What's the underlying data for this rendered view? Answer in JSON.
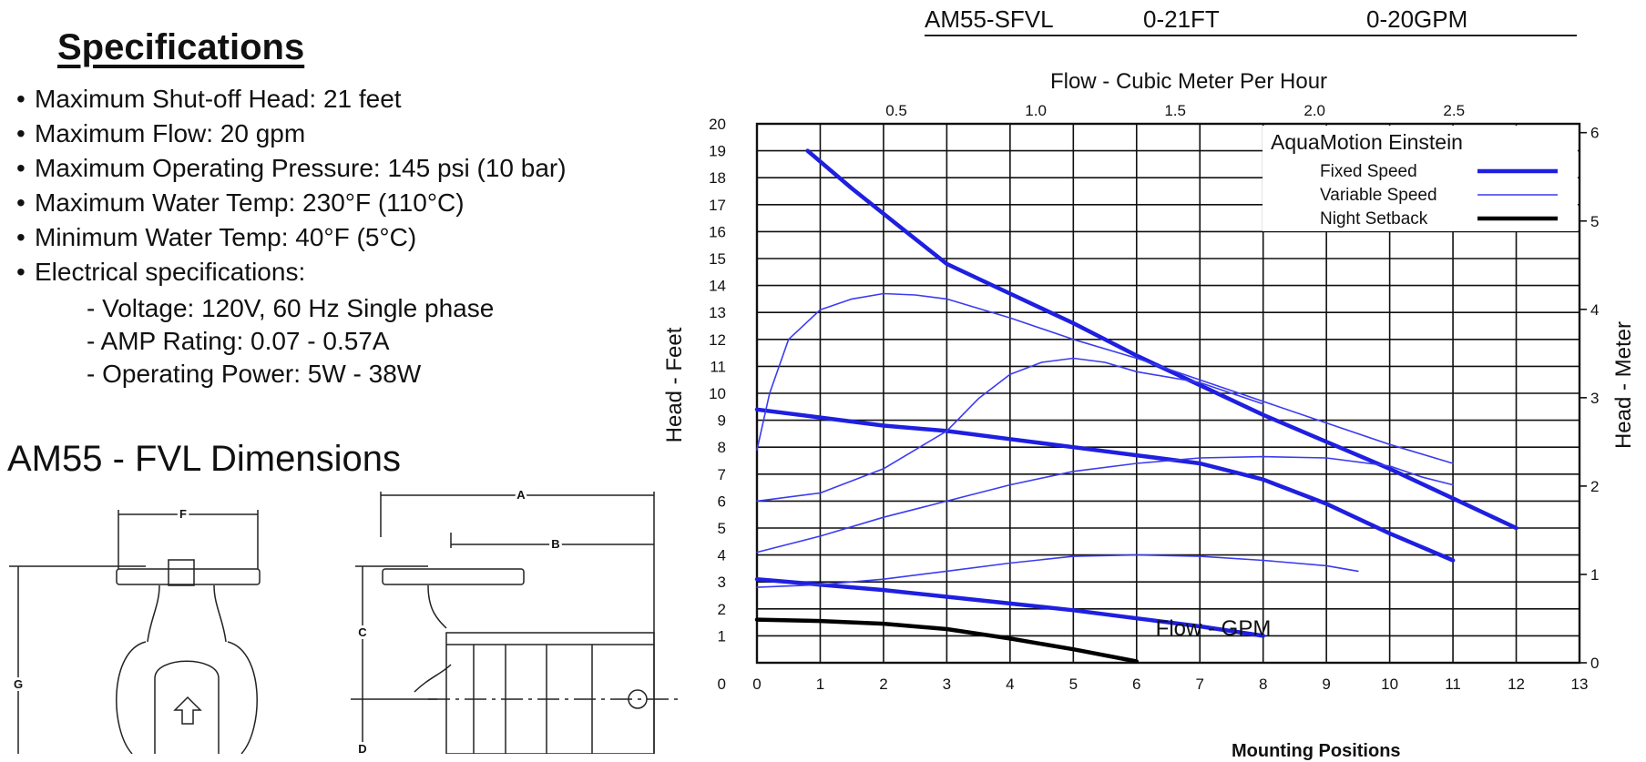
{
  "model_header": {
    "model": "AM55-SFVL",
    "head_range": "0-21FT",
    "flow_range": "0-20GPM"
  },
  "specifications": {
    "title": "Specifications",
    "items": [
      "Maximum Shut-off Head: 21 feet",
      "Maximum Flow: 20 gpm",
      "Maximum Operating Pressure: 145 psi (10 bar)",
      "Maximum Water Temp: 230°F (110°C)",
      "Minimum Water Temp: 40°F (5°C)",
      "Electrical specifications:"
    ],
    "electrical": [
      "- Voltage: 120V, 60 Hz Single phase",
      "- AMP Rating: 0.07 - 0.57A",
      "- Operating Power: 5W - 38W"
    ]
  },
  "dimensions": {
    "title": "AM55 - FVL Dimensions",
    "labels": {
      "a": "A",
      "b": "B",
      "c": "C",
      "d": "D",
      "f": "F",
      "g": "G"
    }
  },
  "mounting_label": "Mounting Positions",
  "chart_data": {
    "type": "line",
    "xlabel": "Flow - GPM",
    "ylabel": "Head - Feet",
    "x2label": "Flow - Cubic Meter Per Hour",
    "y2label": "Head - Meter",
    "xlim": [
      0,
      13
    ],
    "ylim": [
      0,
      20
    ],
    "x2lim": [
      0,
      2.95
    ],
    "y2lim": [
      0,
      6.1
    ],
    "x_ticks": [
      0,
      1,
      2,
      3,
      4,
      5,
      6,
      7,
      8,
      9,
      10,
      11,
      12,
      13
    ],
    "y_ticks": [
      1,
      2,
      3,
      4,
      5,
      6,
      7,
      8,
      9,
      10,
      11,
      12,
      13,
      14,
      15,
      16,
      17,
      18,
      19,
      20
    ],
    "x2_ticks": [
      0.5,
      1.0,
      1.5,
      2.0,
      2.5
    ],
    "x2_tick_labels": [
      "0.5",
      "1.0",
      "1.5",
      "2.0",
      "2.5"
    ],
    "y2_ticks": [
      0,
      1,
      2,
      3,
      4,
      5,
      6
    ],
    "grid": true,
    "legend": {
      "title": "AquaMotion Einstein",
      "placement": "top-right",
      "entries": [
        {
          "name": "Fixed Speed",
          "color": "#1f1fe0",
          "style": "thick"
        },
        {
          "name": "Variable Speed",
          "color": "#3b3bf0",
          "style": "thin"
        },
        {
          "name": "Night Setback",
          "color": "#000000",
          "style": "thick"
        }
      ]
    },
    "series": [
      {
        "name": "Fixed Speed",
        "color": "#1f1fe0",
        "style": "thick",
        "points": [
          [
            0.8,
            19
          ],
          [
            1.5,
            17.6
          ],
          [
            2.3,
            16.1
          ],
          [
            3,
            14.8
          ],
          [
            4,
            13.7
          ],
          [
            5,
            12.6
          ],
          [
            6,
            11.4
          ],
          [
            7,
            10.3
          ],
          [
            8,
            9.2
          ],
          [
            9,
            8.2
          ],
          [
            10,
            7.2
          ],
          [
            11,
            6.1
          ],
          [
            12,
            5
          ]
        ]
      },
      {
        "name": "Fixed Speed",
        "color": "#1f1fe0",
        "style": "thick",
        "points": [
          [
            0,
            9.4
          ],
          [
            1,
            9.1
          ],
          [
            2,
            8.8
          ],
          [
            3,
            8.6
          ],
          [
            4,
            8.3
          ],
          [
            5,
            8
          ],
          [
            6,
            7.7
          ],
          [
            7,
            7.4
          ],
          [
            8,
            6.8
          ],
          [
            9,
            5.9
          ],
          [
            10,
            4.8
          ],
          [
            11,
            3.8
          ]
        ]
      },
      {
        "name": "Fixed Speed",
        "color": "#1f1fe0",
        "style": "thick",
        "points": [
          [
            0,
            3.1
          ],
          [
            1,
            2.9
          ],
          [
            2,
            2.7
          ],
          [
            3,
            2.45
          ],
          [
            4,
            2.2
          ],
          [
            5,
            1.95
          ],
          [
            6,
            1.65
          ],
          [
            7,
            1.35
          ],
          [
            8,
            1
          ]
        ]
      },
      {
        "name": "Variable Speed",
        "color": "#3b3bf0",
        "style": "thin",
        "points": [
          [
            0,
            7.9
          ],
          [
            0.2,
            10
          ],
          [
            0.5,
            12
          ],
          [
            1,
            13.1
          ],
          [
            1.5,
            13.5
          ],
          [
            2,
            13.7
          ],
          [
            2.5,
            13.65
          ],
          [
            3,
            13.5
          ],
          [
            4,
            12.8
          ],
          [
            5,
            12
          ],
          [
            6,
            11.3
          ],
          [
            7,
            10.5
          ],
          [
            8,
            9.7
          ],
          [
            9,
            8.9
          ],
          [
            10,
            8.1
          ],
          [
            11,
            7.4
          ]
        ]
      },
      {
        "name": "Variable Speed",
        "color": "#3b3bf0",
        "style": "thin",
        "points": [
          [
            0,
            6
          ],
          [
            1,
            6.3
          ],
          [
            2,
            7.2
          ],
          [
            3,
            8.6
          ],
          [
            3.5,
            9.8
          ],
          [
            4,
            10.7
          ],
          [
            4.5,
            11.15
          ],
          [
            5,
            11.3
          ],
          [
            5.5,
            11.15
          ],
          [
            6,
            10.8
          ],
          [
            7,
            10.4
          ],
          [
            8,
            9.6
          ]
        ]
      },
      {
        "name": "Variable Speed",
        "color": "#3b3bf0",
        "style": "thin",
        "points": [
          [
            0,
            4.1
          ],
          [
            1,
            4.7
          ],
          [
            2,
            5.4
          ],
          [
            3,
            6
          ],
          [
            4,
            6.6
          ],
          [
            5,
            7.1
          ],
          [
            6,
            7.4
          ],
          [
            7,
            7.6
          ],
          [
            8,
            7.65
          ],
          [
            9,
            7.6
          ],
          [
            10,
            7.3
          ],
          [
            10.5,
            6.9
          ],
          [
            11,
            6.6
          ]
        ]
      },
      {
        "name": "Variable Speed",
        "color": "#3b3bf0",
        "style": "thin",
        "points": [
          [
            0,
            2.8
          ],
          [
            1,
            2.9
          ],
          [
            2,
            3.1
          ],
          [
            3,
            3.4
          ],
          [
            4,
            3.7
          ],
          [
            5,
            3.95
          ],
          [
            6,
            4
          ],
          [
            7,
            3.95
          ],
          [
            8,
            3.8
          ],
          [
            9,
            3.6
          ],
          [
            9.5,
            3.4
          ]
        ]
      },
      {
        "name": "Night Setback",
        "color": "#000000",
        "style": "thick",
        "points": [
          [
            0,
            1.6
          ],
          [
            1,
            1.55
          ],
          [
            2,
            1.45
          ],
          [
            3,
            1.25
          ],
          [
            4,
            0.9
          ],
          [
            5,
            0.5
          ],
          [
            6,
            0.05
          ]
        ]
      }
    ]
  }
}
